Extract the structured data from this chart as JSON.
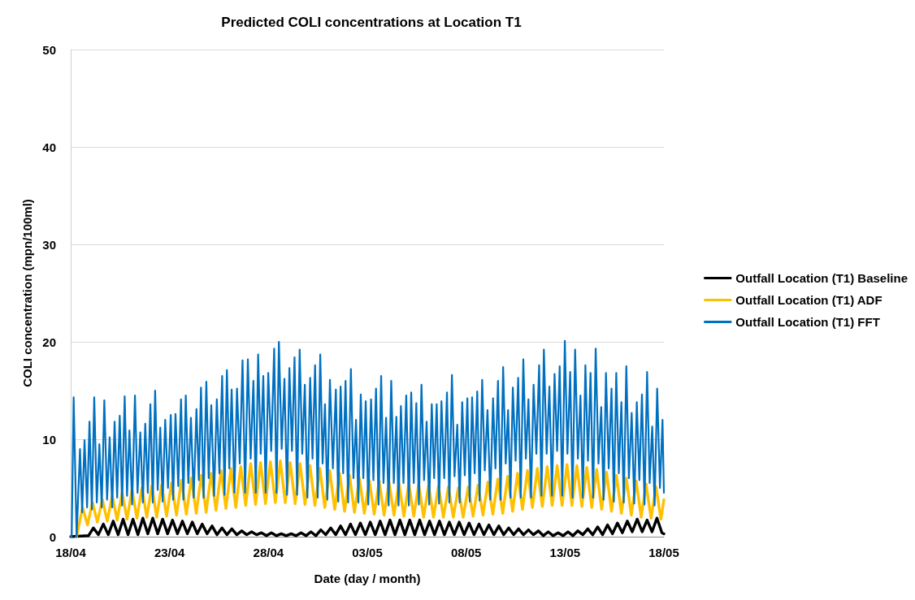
{
  "chart_data": {
    "type": "line",
    "title": "Predicted COLI concentrations at Location T1",
    "xlabel": "Date (day / month)",
    "ylabel": "COLI concentration (mpn/100ml)",
    "xlim": [
      "--04-18",
      "--05-18"
    ],
    "xticks": [
      {
        "value": "--04-18",
        "label": "18/04"
      },
      {
        "value": "--04-23",
        "label": "23/04"
      },
      {
        "value": "--04-28",
        "label": "28/04"
      },
      {
        "value": "--05-03",
        "label": "03/05"
      },
      {
        "value": "--05-08",
        "label": "08/05"
      },
      {
        "value": "--05-13",
        "label": "13/05"
      },
      {
        "value": "--05-18",
        "label": "18/05"
      }
    ],
    "ylim": [
      0,
      50
    ],
    "yticks": [
      0,
      10,
      20,
      30,
      40,
      50
    ],
    "grid": "y",
    "legend": "right",
    "series": [
      {
        "name": "Outfall Location (T1) Baseline",
        "color": "#000000",
        "x": [
          "--04-18T00:00",
          "--04-18T21:36",
          "--04-19T03:36",
          "--04-19T09:36",
          "--04-19T15:36",
          "--04-19T21:36",
          "--04-20T03:36",
          "--04-20T09:36",
          "--04-20T15:36",
          "--04-20T21:36",
          "--04-21T03:36",
          "--04-21T09:36",
          "--04-21T15:36",
          "--04-21T21:36",
          "--04-22T03:36",
          "--04-22T09:36",
          "--04-22T15:36",
          "--04-22T21:36",
          "--04-23T03:36",
          "--04-23T09:36",
          "--04-23T15:36",
          "--04-23T21:36",
          "--04-24T03:36",
          "--04-24T09:36",
          "--04-24T15:36",
          "--04-24T21:36",
          "--04-25T03:36",
          "--04-25T09:36",
          "--04-25T15:36",
          "--04-25T21:36",
          "--04-26T03:36",
          "--04-26T09:36",
          "--04-26T15:36",
          "--04-26T21:36",
          "--04-27T03:36",
          "--04-27T09:36",
          "--04-27T15:36",
          "--04-27T21:36",
          "--04-28T03:36",
          "--04-28T09:36",
          "--04-28T15:36",
          "--04-28T21:36",
          "--04-29T03:36",
          "--04-29T09:36",
          "--04-29T15:36",
          "--04-29T21:36",
          "--04-30T03:36",
          "--04-30T09:36",
          "--04-30T15:36",
          "--04-30T21:36",
          "--05-01T03:36",
          "--05-01T09:36",
          "--05-01T15:36",
          "--05-01T21:36",
          "--05-02T03:36",
          "--05-02T09:36",
          "--05-02T15:36",
          "--05-02T21:36",
          "--05-03T03:36",
          "--05-03T09:36",
          "--05-03T15:36",
          "--05-03T21:36",
          "--05-04T03:36",
          "--05-04T09:36",
          "--05-04T15:36",
          "--05-04T21:36",
          "--05-05T03:36",
          "--05-05T09:36",
          "--05-05T15:36",
          "--05-05T21:36",
          "--05-06T03:36",
          "--05-06T09:36",
          "--05-06T15:36",
          "--05-06T21:36",
          "--05-07T03:36",
          "--05-07T09:36",
          "--05-07T15:36",
          "--05-07T21:36",
          "--05-08T03:36",
          "--05-08T09:36",
          "--05-08T15:36",
          "--05-08T21:36",
          "--05-09T03:36",
          "--05-09T09:36",
          "--05-09T15:36",
          "--05-09T21:36",
          "--05-10T03:36",
          "--05-10T09:36",
          "--05-10T15:36",
          "--05-10T21:36",
          "--05-11T03:36",
          "--05-11T09:36",
          "--05-11T15:36",
          "--05-11T21:36",
          "--05-12T03:36",
          "--05-12T09:36",
          "--05-12T15:36",
          "--05-12T21:36",
          "--05-13T03:36",
          "--05-13T09:36",
          "--05-13T15:36",
          "--05-13T21:36",
          "--05-14T03:36",
          "--05-14T09:36",
          "--05-14T15:36",
          "--05-14T21:36",
          "--05-15T03:36",
          "--05-15T09:36",
          "--05-15T15:36",
          "--05-15T21:36",
          "--05-16T03:36",
          "--05-16T09:36",
          "--05-16T15:36",
          "--05-16T21:36",
          "--05-17T03:36",
          "--05-17T09:36",
          "--05-17T15:36",
          "--05-17T21:36",
          "--05-18T00:00"
        ],
        "values": [
          0,
          0.1,
          0.9,
          0.2,
          1.3,
          0.2,
          1.6,
          0.2,
          1.8,
          0.2,
          1.8,
          0.2,
          1.9,
          0.3,
          1.9,
          0.3,
          1.8,
          0.3,
          1.7,
          0.3,
          1.6,
          0.3,
          1.5,
          0.3,
          1.3,
          0.3,
          1.1,
          0.2,
          0.9,
          0.2,
          0.8,
          0.2,
          0.6,
          0.2,
          0.5,
          0.2,
          0.4,
          0.1,
          0.4,
          0.1,
          0.3,
          0.1,
          0.3,
          0.1,
          0.4,
          0.1,
          0.5,
          0.1,
          0.7,
          0.2,
          0.9,
          0.2,
          1.1,
          0.2,
          1.3,
          0.2,
          1.4,
          0.2,
          1.5,
          0.2,
          1.6,
          0.2,
          1.7,
          0.2,
          1.7,
          0.2,
          1.7,
          0.2,
          1.7,
          0.2,
          1.6,
          0.2,
          1.6,
          0.2,
          1.5,
          0.2,
          1.5,
          0.2,
          1.4,
          0.2,
          1.3,
          0.2,
          1.2,
          0.2,
          1.1,
          0.2,
          0.9,
          0.2,
          0.8,
          0.2,
          0.7,
          0.2,
          0.6,
          0.1,
          0.5,
          0.1,
          0.4,
          0.1,
          0.5,
          0.1,
          0.6,
          0.2,
          0.8,
          0.2,
          1.0,
          0.2,
          1.2,
          0.3,
          1.4,
          0.4,
          1.6,
          0.5,
          1.8,
          0.5,
          1.7,
          0.5,
          1.9,
          0.4,
          0.3
        ]
      },
      {
        "name": "Outfall Location (T1) ADF",
        "color": "#ffc000",
        "x": [
          "--04-18T07:12",
          "--04-18T09:36",
          "--04-18T14:24",
          "--04-18T20:24",
          "--04-19T02:24",
          "--04-19T08:24",
          "--04-19T14:24",
          "--04-19T20:24",
          "--04-20T02:24",
          "--04-20T08:24",
          "--04-20T14:24",
          "--04-20T20:24",
          "--04-21T02:24",
          "--04-21T08:24",
          "--04-21T14:24",
          "--04-21T20:24",
          "--04-22T02:24",
          "--04-22T08:24",
          "--04-22T14:24",
          "--04-22T20:24",
          "--04-23T02:24",
          "--04-23T08:24",
          "--04-23T14:24",
          "--04-23T20:24",
          "--04-24T02:24",
          "--04-24T08:24",
          "--04-24T14:24",
          "--04-24T20:24",
          "--04-25T02:24",
          "--04-25T08:24",
          "--04-25T14:24",
          "--04-25T20:24",
          "--04-26T02:24",
          "--04-26T08:24",
          "--04-26T14:24",
          "--04-26T20:24",
          "--04-27T02:24",
          "--04-27T08:24",
          "--04-27T14:24",
          "--04-27T20:24",
          "--04-28T02:24",
          "--04-28T08:24",
          "--04-28T14:24",
          "--04-28T20:24",
          "--04-29T02:24",
          "--04-29T08:24",
          "--04-29T14:24",
          "--04-29T20:24",
          "--04-30T02:24",
          "--04-30T08:24",
          "--04-30T14:24",
          "--04-30T20:24",
          "--05-01T02:24",
          "--05-01T08:24",
          "--05-01T14:24",
          "--05-01T20:24",
          "--05-02T02:24",
          "--05-02T08:24",
          "--05-02T14:24",
          "--05-02T20:24",
          "--05-03T02:24",
          "--05-03T08:24",
          "--05-03T14:24",
          "--05-03T20:24",
          "--05-04T02:24",
          "--05-04T08:24",
          "--05-04T14:24",
          "--05-04T20:24",
          "--05-05T02:24",
          "--05-05T08:24",
          "--05-05T14:24",
          "--05-05T20:24",
          "--05-06T02:24",
          "--05-06T08:24",
          "--05-06T14:24",
          "--05-06T20:24",
          "--05-07T02:24",
          "--05-07T08:24",
          "--05-07T14:24",
          "--05-07T20:24",
          "--05-08T02:24",
          "--05-08T08:24",
          "--05-08T14:24",
          "--05-08T20:24",
          "--05-09T02:24",
          "--05-09T08:24",
          "--05-09T14:24",
          "--05-09T20:24",
          "--05-10T02:24",
          "--05-10T08:24",
          "--05-10T14:24",
          "--05-10T20:24",
          "--05-11T02:24",
          "--05-11T08:24",
          "--05-11T14:24",
          "--05-11T20:24",
          "--05-12T02:24",
          "--05-12T08:24",
          "--05-12T14:24",
          "--05-12T20:24",
          "--05-13T02:24",
          "--05-13T08:24",
          "--05-13T14:24",
          "--05-13T20:24",
          "--05-14T02:24",
          "--05-14T08:24",
          "--05-14T14:24",
          "--05-14T20:24",
          "--05-15T02:24",
          "--05-15T08:24",
          "--05-15T14:24",
          "--05-15T20:24",
          "--05-16T02:24",
          "--05-16T08:24",
          "--05-16T14:24",
          "--05-16T20:24",
          "--05-17T02:24",
          "--05-17T08:24",
          "--05-17T14:24",
          "--05-17T20:24",
          "--05-18T00:00"
        ],
        "values": [
          0,
          1.0,
          3.0,
          1.2,
          3.5,
          1.5,
          3.8,
          1.6,
          4.2,
          1.7,
          4.5,
          1.8,
          4.8,
          1.9,
          5.0,
          2.0,
          5.2,
          2.0,
          5.3,
          2.1,
          5.5,
          2.2,
          5.8,
          2.3,
          6.0,
          2.4,
          6.3,
          2.5,
          6.5,
          2.7,
          6.8,
          2.9,
          7.0,
          3.0,
          7.2,
          3.2,
          7.5,
          3.3,
          7.6,
          3.4,
          7.7,
          3.5,
          7.8,
          3.5,
          7.6,
          3.4,
          7.5,
          3.3,
          7.3,
          3.2,
          7.0,
          3.0,
          6.8,
          2.8,
          6.5,
          2.6,
          6.3,
          2.5,
          6.0,
          2.4,
          5.8,
          2.3,
          5.7,
          2.2,
          5.6,
          2.2,
          5.5,
          2.1,
          5.5,
          2.1,
          5.4,
          2.0,
          5.3,
          2.0,
          5.2,
          2.0,
          5.1,
          2.0,
          5.0,
          2.0,
          5.1,
          2.1,
          5.3,
          2.2,
          5.6,
          2.3,
          5.9,
          2.4,
          6.2,
          2.6,
          6.5,
          2.8,
          6.8,
          3.0,
          7.0,
          3.1,
          7.2,
          3.2,
          7.3,
          3.2,
          7.4,
          3.2,
          7.3,
          3.1,
          7.1,
          3.0,
          6.9,
          2.8,
          6.6,
          2.6,
          6.3,
          2.4,
          6.0,
          2.2,
          5.7,
          2.0,
          5.4,
          1.9,
          5.1,
          1.8,
          3.8
        ]
      },
      {
        "name": "Outfall Location (T1) FFT",
        "color": "#0070c0",
        "x": [
          "--04-18T00:00",
          "--04-18T01:12",
          "--04-18T03:36",
          "--04-18T07:12",
          "--04-18T11:17",
          "--04-18T13:55",
          "--04-18T16:48",
          "--04-18T19:55",
          "--04-18T22:48",
          "--04-19T01:41",
          "--04-19T04:34",
          "--04-19T07:41",
          "--04-19T10:48",
          "--04-19T13:41",
          "--04-19T16:48",
          "--04-19T20:10",
          "--04-19T23:17",
          "--04-20T02:24",
          "--04-20T05:17",
          "--04-20T08:24",
          "--04-20T11:31",
          "--04-20T14:24",
          "--04-20T17:31",
          "--04-20T20:24",
          "--04-20T23:17",
          "--04-21T02:38",
          "--04-21T06:00",
          "--04-21T09:07",
          "--04-21T12:29",
          "--04-21T15:36",
          "--04-21T18:29",
          "--04-21T21:36",
          "--04-22T00:43",
          "--04-22T03:36",
          "--04-22T06:29",
          "--04-22T09:36",
          "--04-22T12:43",
          "--04-22T15:36",
          "--04-22T18:43",
          "--04-22T22:05",
          "--04-23T01:26",
          "--04-23T04:19",
          "--04-23T07:12",
          "--04-23T10:34",
          "--04-23T13:55",
          "--04-23T16:48",
          "--04-23T19:41",
          "--04-23T22:48",
          "--04-24T01:55",
          "--04-24T05:17",
          "--04-24T08:38",
          "--04-24T11:31",
          "--04-24T14:10",
          "--04-24T17:17",
          "--04-24T20:38",
          "--04-24T23:31",
          "--04-25T02:38",
          "--04-25T06:00",
          "--04-25T09:22",
          "--04-25T12:29",
          "--04-25T15:50",
          "--04-25T18:43",
          "--04-25T21:36",
          "--04-26T00:29",
          "--04-26T03:22",
          "--04-26T06:43",
          "--04-26T09:50",
          "--04-26T13:12",
          "--04-26T16:34",
          "--04-26T19:41",
          "--04-26T23:02",
          "--04-27T02:24",
          "--04-27T05:46",
          "--04-27T08:38",
          "--04-27T11:31",
          "--04-27T14:38",
          "--04-27T17:46",
          "--04-27T20:38",
          "--04-27T23:46",
          "--04-28T03:22",
          "--04-28T06:58",
          "--04-28T09:50",
          "--04-28T12:43",
          "--04-28T16:05",
          "--04-28T19:26",
          "--04-28T22:34",
          "--04-29T01:26",
          "--04-29T04:34",
          "--04-29T07:41",
          "--04-29T10:48",
          "--04-29T13:55",
          "--04-29T17:02",
          "--04-29T20:10",
          "--04-29T23:17",
          "--04-30T02:38",
          "--04-30T05:31",
          "--04-30T08:38",
          "--04-30T11:46",
          "--04-30T14:53",
          "--04-30T17:46",
          "--04-30T20:38",
          "--04-30T23:31",
          "--05-01T02:38",
          "--05-01T06:14",
          "--05-01T09:50",
          "--05-01T12:43",
          "--05-01T15:36",
          "--05-01T18:43",
          "--05-01T21:36",
          "--05-02T00:43",
          "--05-02T04:05",
          "--05-02T07:12",
          "--05-02T10:19",
          "--05-02T13:12",
          "--05-02T16:05",
          "--05-02T19:12",
          "--05-02T22:05",
          "--05-03T01:12",
          "--05-03T04:34",
          "--05-03T07:26",
          "--05-03T10:34",
          "--05-03T13:41",
          "--05-03T16:48",
          "--05-03T19:41",
          "--05-03T22:48",
          "--05-04T01:55",
          "--05-04T05:02",
          "--05-04T08:10",
          "--05-04T11:17",
          "--05-04T13:55",
          "--05-04T16:48",
          "--05-04T19:55",
          "--05-04T23:17",
          "--05-05T02:24",
          "--05-05T05:17",
          "--05-05T08:24",
          "--05-05T11:31",
          "--05-05T14:38",
          "--05-05T17:46",
          "--05-05T20:53",
          "--05-06T00:00",
          "--05-06T03:07",
          "--05-06T06:14",
          "--05-06T09:07",
          "--05-06T12:14",
          "--05-06T15:07",
          "--05-06T18:00",
          "--05-06T21:22",
          "--05-07T00:43",
          "--05-07T03:36",
          "--05-07T06:43",
          "--05-07T09:50",
          "--05-07T13:12",
          "--05-07T16:05",
          "--05-07T19:12",
          "--05-07T22:19",
          "--05-08T01:26",
          "--05-08T04:19",
          "--05-08T07:12",
          "--05-08T10:19",
          "--05-08T13:26",
          "--05-08T16:19",
          "--05-08T19:26",
          "--05-08T22:34",
          "--05-09T01:55",
          "--05-09T05:17",
          "--05-09T08:38",
          "--05-09T11:31",
          "--05-09T14:38",
          "--05-09T17:46",
          "--05-09T20:53",
          "--05-10T00:00",
          "--05-10T02:53",
          "--05-10T05:46",
          "--05-10T08:38",
          "--05-10T12:00",
          "--05-10T15:07",
          "--05-10T18:14",
          "--05-10T21:22",
          "--05-11T00:29",
          "--05-11T03:36",
          "--05-11T06:43",
          "--05-11T09:50",
          "--05-11T13:12",
          "--05-11T16:34",
          "--05-11T19:26",
          "--05-11T22:19",
          "--05-12T01:41",
          "--05-12T05:02",
          "--05-12T08:10",
          "--05-12T11:17",
          "--05-12T14:24",
          "--05-12T17:31",
          "--05-12T20:38",
          "--05-12T23:46",
          "--05-13T02:53",
          "--05-13T06:14",
          "--05-13T09:07",
          "--05-13T12:14",
          "--05-13T15:36",
          "--05-13T18:43",
          "--05-13T21:36",
          "--05-14T00:43",
          "--05-14T03:50",
          "--05-14T06:58",
          "--05-14T10:05",
          "--05-14T13:12",
          "--05-14T16:34",
          "--05-14T19:55",
          "--05-14T22:48",
          "--05-15T01:41",
          "--05-15T05:02",
          "--05-15T08:24",
          "--05-15T11:17",
          "--05-15T14:10",
          "--05-15T17:17",
          "--05-15T20:24",
          "--05-15T23:17",
          "--05-16T02:24",
          "--05-16T05:31",
          "--05-16T08:53",
          "--05-16T12:00",
          "--05-16T15:07",
          "--05-16T18:14",
          "--05-16T21:22",
          "--05-17T00:29",
          "--05-17T03:36",
          "--05-17T06:43",
          "--05-17T09:50",
          "--05-17T12:43",
          "--05-17T15:50",
          "--05-17T19:12",
          "--05-17T22:19",
          "--05-18T00:00"
        ],
        "values": [
          0,
          0,
          14.3,
          0,
          9.0,
          2.5,
          9.9,
          3.0,
          11.8,
          2.8,
          14.3,
          3.5,
          9.5,
          3.0,
          14.0,
          3.8,
          10.2,
          3.0,
          11.8,
          4.0,
          12.4,
          3.2,
          14.4,
          4.2,
          10.9,
          3.3,
          14.5,
          4.5,
          10.7,
          3.5,
          11.6,
          4.5,
          13.6,
          3.5,
          15.0,
          4.8,
          11.2,
          3.6,
          12.0,
          5.0,
          12.5,
          3.8,
          12.6,
          5.2,
          14.1,
          3.8,
          14.5,
          5.5,
          12.2,
          4.0,
          13.1,
          5.8,
          15.3,
          4.0,
          15.9,
          6.0,
          13.5,
          4.2,
          14.1,
          6.5,
          16.5,
          4.3,
          17.1,
          7.0,
          15.1,
          4.5,
          15.2,
          7.5,
          18.1,
          4.5,
          18.2,
          8.0,
          16.0,
          4.5,
          18.7,
          8.5,
          16.5,
          4.5,
          16.8,
          8.8,
          19.3,
          4.5,
          20.0,
          9.0,
          16.2,
          4.3,
          17.3,
          8.8,
          18.4,
          4.3,
          19.2,
          8.5,
          15.6,
          4.0,
          16.3,
          8.0,
          17.6,
          4.0,
          18.7,
          7.5,
          13.6,
          3.8,
          16.1,
          7.0,
          15.1,
          3.6,
          15.4,
          6.5,
          16.0,
          3.5,
          17.2,
          6.0,
          12.0,
          3.5,
          14.6,
          6.0,
          13.9,
          3.3,
          14.1,
          5.8,
          15.2,
          3.3,
          16.5,
          5.5,
          12.2,
          3.2,
          16.0,
          5.5,
          12.3,
          3.2,
          13.4,
          5.5,
          14.5,
          3.2,
          14.8,
          5.5,
          13.7,
          3.3,
          15.6,
          5.8,
          11.8,
          3.3,
          13.6,
          6.0,
          13.6,
          3.4,
          13.9,
          6.0,
          14.8,
          3.5,
          16.6,
          6.2,
          11.5,
          3.5,
          13.8,
          6.3,
          14.2,
          3.6,
          14.3,
          6.5,
          14.9,
          3.7,
          16.1,
          6.8,
          13.0,
          3.8,
          14.2,
          7.0,
          16.0,
          3.8,
          17.4,
          7.5,
          13.0,
          4.0,
          15.3,
          7.8,
          16.3,
          4.0,
          18.2,
          8.0,
          14.1,
          4.0,
          15.6,
          8.5,
          17.6,
          4.2,
          19.2,
          8.5,
          15.4,
          4.2,
          16.7,
          8.8,
          17.5,
          4.2,
          20.1,
          8.5,
          16.9,
          4.0,
          19.2,
          8.0,
          14.5,
          4.0,
          17.6,
          7.8,
          16.8,
          4.0,
          19.3,
          7.5,
          13.3,
          3.8,
          16.8,
          7.0,
          15.2,
          3.6,
          16.8,
          6.5,
          13.8,
          3.5,
          17.5,
          6.0,
          12.7,
          3.4,
          13.8,
          5.8,
          14.6,
          3.3,
          16.9,
          5.5,
          11.3,
          3.2,
          15.2,
          5.0,
          12.0,
          4.5
        ]
      }
    ]
  }
}
